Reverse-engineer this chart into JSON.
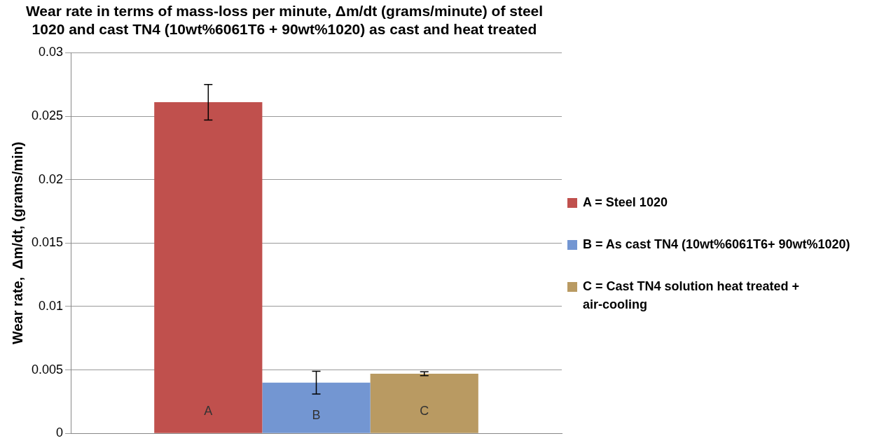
{
  "chart_data": {
    "type": "bar",
    "title": [
      "Wear rate in terms of mass-loss per minute, Δm/dt (grams/minute) of steel",
      "1020 and cast TN4 (10wt%6061T6 + 90wt%1020) as cast and heat treated"
    ],
    "ylabel": "Wear rate,  Δm/dt, (grams/min)",
    "categories": [
      null
    ],
    "series": [
      {
        "name": "A = Steel 1020",
        "color": "#c0504d",
        "values": [
          0.0261
        ],
        "errors": [
          0.0014
        ]
      },
      {
        "name": "B = As cast TN4 (10wt%6061T6+ 90wt%1020)",
        "color": "#7396d2",
        "values": [
          0.004
        ],
        "errors": [
          0.0009
        ]
      },
      {
        "name": "C = Cast TN4 solution heat treated + air-cooling",
        "color": "#b99a62",
        "values": [
          0.0047
        ],
        "errors": [
          0.00015
        ]
      }
    ],
    "annotations": [
      "A",
      "B",
      "C"
    ],
    "ylim": [
      0,
      0.03
    ],
    "yticks": [
      0,
      0.005,
      0.01,
      0.015,
      0.02,
      0.025,
      0.03
    ],
    "grid": "y",
    "legend": "right"
  }
}
